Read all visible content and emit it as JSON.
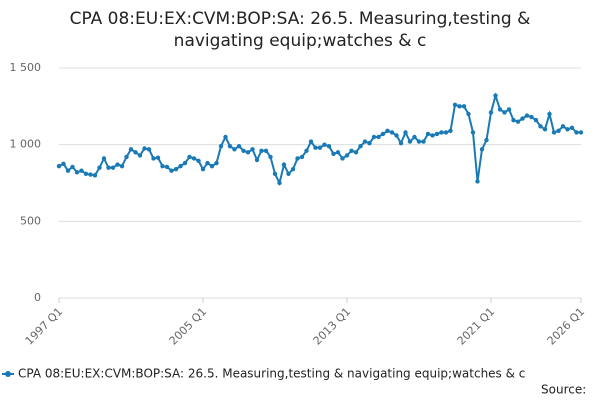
{
  "chart_data": {
    "type": "line",
    "title": "CPA 08:EU:EX:CVM:BOP:SA: 26.5. Measuring,testing & navigating equip;watches & c",
    "source_label": "Source:",
    "categories": [
      "1997 Q1",
      null,
      null,
      null,
      null,
      null,
      null,
      null,
      null,
      null,
      null,
      null,
      null,
      null,
      null,
      null,
      null,
      null,
      null,
      null,
      null,
      null,
      null,
      null,
      null,
      null,
      null,
      null,
      null,
      null,
      null,
      null,
      "2005 Q1",
      null,
      null,
      null,
      null,
      null,
      null,
      null,
      null,
      null,
      null,
      null,
      null,
      null,
      null,
      null,
      null,
      null,
      null,
      null,
      null,
      null,
      null,
      null,
      null,
      null,
      null,
      null,
      null,
      null,
      null,
      null,
      "2013 Q1",
      null,
      null,
      null,
      null,
      null,
      null,
      null,
      null,
      null,
      null,
      null,
      null,
      null,
      null,
      null,
      null,
      null,
      null,
      null,
      null,
      null,
      null,
      null,
      null,
      null,
      null,
      null,
      null,
      null,
      null,
      null,
      "2021 Q1",
      null,
      null,
      null,
      null,
      null,
      null,
      null,
      null,
      null,
      null,
      null,
      null,
      null,
      null,
      null,
      null,
      null,
      null,
      null,
      "2026 Q1"
    ],
    "series": [
      {
        "name": "CPA 08:EU:EX:CVM:BOP:SA: 26.5. Measuring,testing & navigating equip;watches & c",
        "color": "#1a7ab5",
        "values": [
          860,
          875,
          830,
          855,
          820,
          830,
          810,
          805,
          800,
          850,
          910,
          850,
          850,
          870,
          860,
          920,
          970,
          950,
          930,
          975,
          970,
          910,
          915,
          860,
          855,
          830,
          840,
          860,
          880,
          920,
          910,
          895,
          840,
          880,
          860,
          880,
          990,
          1050,
          990,
          970,
          990,
          960,
          950,
          970,
          900,
          960,
          960,
          920,
          810,
          750,
          870,
          810,
          840,
          910,
          920,
          960,
          1020,
          980,
          980,
          1000,
          990,
          940,
          950,
          910,
          930,
          960,
          950,
          990,
          1020,
          1010,
          1050,
          1050,
          1070,
          1090,
          1080,
          1060,
          1010,
          1080,
          1020,
          1050,
          1020,
          1020,
          1070,
          1060,
          1070,
          1080,
          1080,
          1090,
          1260,
          1250,
          1250,
          1200,
          1080,
          760,
          970,
          1030,
          1210,
          1320,
          1230,
          1210,
          1230,
          1160,
          1150,
          1170,
          1190,
          1180,
          1160,
          1120,
          1100,
          1200,
          1080,
          1090,
          1120,
          1100,
          1110,
          1080,
          1080
        ]
      }
    ],
    "ylim": [
      0,
      1600
    ],
    "yticks": [
      0,
      500,
      {
        "value": 1000,
        "label": "1 000"
      },
      {
        "value": 1500,
        "label": "1 500"
      }
    ],
    "grid": true
  }
}
